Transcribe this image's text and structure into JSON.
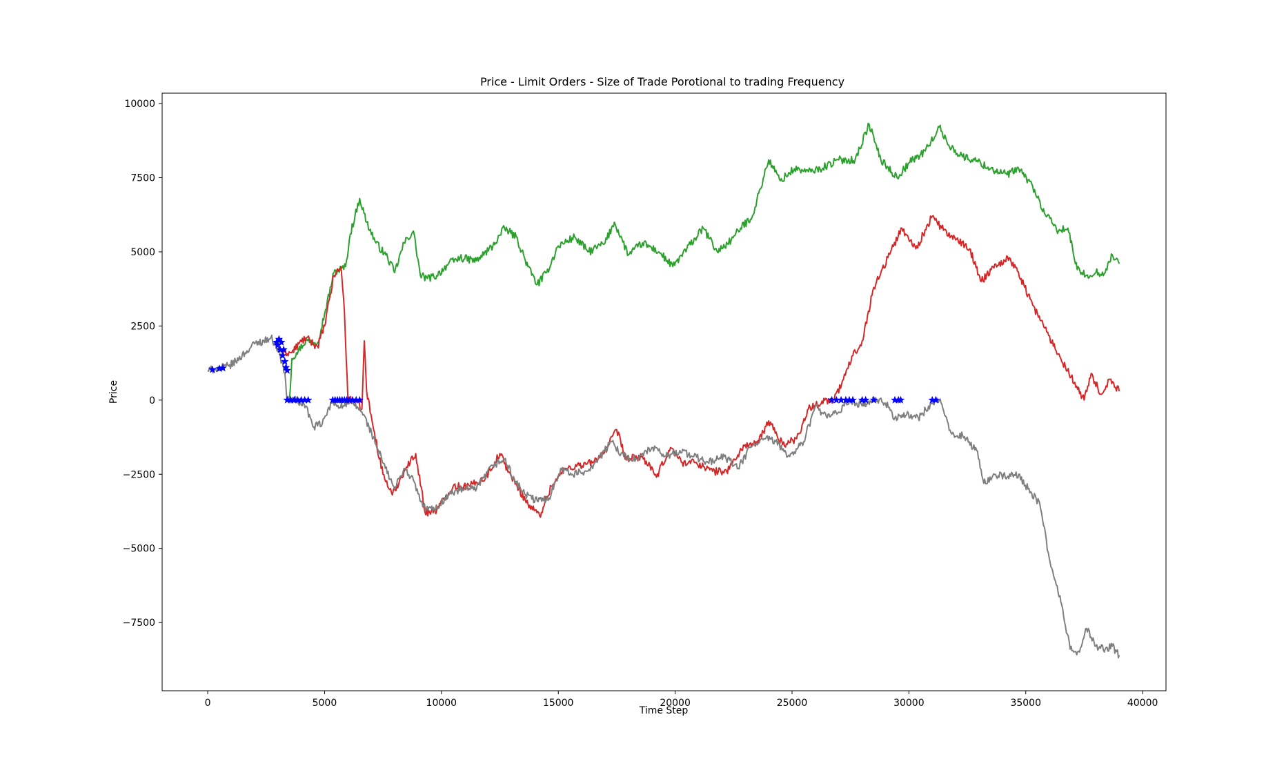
{
  "chart_data": {
    "type": "line",
    "title": "Price - Limit Orders - Size of Trade Porotional to trading Frequency",
    "xlabel": "Time Step",
    "ylabel": "Price",
    "xlim": [
      -1950,
      41000
    ],
    "ylim": [
      -9800,
      10350
    ],
    "x_ticks": [
      0,
      5000,
      10000,
      15000,
      20000,
      25000,
      30000,
      35000,
      40000
    ],
    "x_tick_labels": [
      "0",
      "5000",
      "10000",
      "15000",
      "20000",
      "25000",
      "30000",
      "35000",
      "40000"
    ],
    "y_ticks": [
      -7500,
      -5000,
      -2500,
      0,
      2500,
      5000,
      7500,
      10000
    ],
    "y_tick_labels": [
      "−7500",
      "−5000",
      "−2500",
      "0",
      "2500",
      "5000",
      "7500",
      "10000"
    ],
    "grid": false,
    "series": [
      {
        "color": "#2ca02c",
        "points": [
          [
            3500,
            0
          ],
          [
            3600,
            1400
          ],
          [
            3800,
            1600
          ],
          [
            4200,
            2000
          ],
          [
            4700,
            1950
          ],
          [
            5000,
            2900
          ],
          [
            5400,
            4300
          ],
          [
            5900,
            4500
          ],
          [
            6100,
            5600
          ],
          [
            6500,
            6800
          ],
          [
            6800,
            6000
          ],
          [
            7200,
            5300
          ],
          [
            7700,
            4800
          ],
          [
            8000,
            4300
          ],
          [
            8400,
            5300
          ],
          [
            8800,
            5700
          ],
          [
            9100,
            4200
          ],
          [
            9400,
            4100
          ],
          [
            9800,
            4200
          ],
          [
            10300,
            4600
          ],
          [
            10800,
            4800
          ],
          [
            11500,
            4700
          ],
          [
            12200,
            5200
          ],
          [
            12700,
            5800
          ],
          [
            13200,
            5500
          ],
          [
            13700,
            4500
          ],
          [
            14100,
            3900
          ],
          [
            14500,
            4300
          ],
          [
            15000,
            5200
          ],
          [
            15700,
            5500
          ],
          [
            16300,
            5000
          ],
          [
            17000,
            5300
          ],
          [
            17400,
            6000
          ],
          [
            18000,
            4900
          ],
          [
            18600,
            5300
          ],
          [
            19300,
            5000
          ],
          [
            19900,
            4500
          ],
          [
            20500,
            5100
          ],
          [
            21200,
            5800
          ],
          [
            21800,
            5000
          ],
          [
            22400,
            5400
          ],
          [
            22800,
            5800
          ],
          [
            23300,
            6200
          ],
          [
            24000,
            8100
          ],
          [
            24500,
            7400
          ],
          [
            25100,
            7800
          ],
          [
            25700,
            7700
          ],
          [
            26200,
            7800
          ],
          [
            27000,
            8100
          ],
          [
            27700,
            8100
          ],
          [
            28300,
            9300
          ],
          [
            28800,
            8100
          ],
          [
            29500,
            7500
          ],
          [
            30000,
            8000
          ],
          [
            30700,
            8400
          ],
          [
            31300,
            9200
          ],
          [
            31700,
            8600
          ],
          [
            32300,
            8200
          ],
          [
            32800,
            8100
          ],
          [
            33500,
            7800
          ],
          [
            34200,
            7600
          ],
          [
            34700,
            7800
          ],
          [
            35300,
            7200
          ],
          [
            35800,
            6300
          ],
          [
            36400,
            5700
          ],
          [
            36800,
            5800
          ],
          [
            37200,
            4400
          ],
          [
            37600,
            4200
          ],
          [
            38000,
            4300
          ],
          [
            38400,
            4300
          ],
          [
            38700,
            4900
          ],
          [
            39000,
            4600
          ]
        ]
      },
      {
        "color": "#d62728",
        "points": [
          [
            3200,
            1600
          ],
          [
            3600,
            1600
          ],
          [
            3900,
            1900
          ],
          [
            4200,
            2100
          ],
          [
            4700,
            1800
          ],
          [
            5000,
            2500
          ],
          [
            5400,
            4200
          ],
          [
            5700,
            4500
          ],
          [
            5850,
            3000
          ],
          [
            6000,
            0
          ],
          [
            6300,
            0
          ],
          [
            6600,
            -300
          ],
          [
            6700,
            2000
          ],
          [
            6800,
            300
          ],
          [
            7100,
            -1000
          ],
          [
            7500,
            -2500
          ],
          [
            7900,
            -3200
          ],
          [
            8400,
            -2400
          ],
          [
            8900,
            -1800
          ],
          [
            9300,
            -3800
          ],
          [
            9800,
            -3700
          ],
          [
            10500,
            -2900
          ],
          [
            11200,
            -2900
          ],
          [
            11900,
            -2600
          ],
          [
            12500,
            -1800
          ],
          [
            13000,
            -2600
          ],
          [
            13700,
            -3500
          ],
          [
            14200,
            -3900
          ],
          [
            14700,
            -2900
          ],
          [
            15300,
            -2300
          ],
          [
            15900,
            -2200
          ],
          [
            16500,
            -2100
          ],
          [
            17100,
            -1600
          ],
          [
            17500,
            -1000
          ],
          [
            17900,
            -2000
          ],
          [
            18600,
            -1900
          ],
          [
            19200,
            -2600
          ],
          [
            19800,
            -1600
          ],
          [
            20300,
            -2100
          ],
          [
            20900,
            -2100
          ],
          [
            21600,
            -2400
          ],
          [
            22200,
            -2400
          ],
          [
            23000,
            -1500
          ],
          [
            23500,
            -1500
          ],
          [
            24000,
            -700
          ],
          [
            24600,
            -1500
          ],
          [
            25200,
            -1300
          ],
          [
            25700,
            -300
          ],
          [
            26400,
            0
          ],
          [
            26800,
            0
          ],
          [
            27200,
            700
          ],
          [
            27600,
            1500
          ],
          [
            28000,
            2000
          ],
          [
            28500,
            3800
          ],
          [
            29100,
            4800
          ],
          [
            29700,
            5800
          ],
          [
            30300,
            5100
          ],
          [
            31000,
            6200
          ],
          [
            31400,
            5800
          ],
          [
            32000,
            5400
          ],
          [
            32600,
            5100
          ],
          [
            33100,
            4000
          ],
          [
            33600,
            4500
          ],
          [
            34300,
            4800
          ],
          [
            34800,
            4100
          ],
          [
            35300,
            3200
          ],
          [
            35900,
            2300
          ],
          [
            36500,
            1400
          ],
          [
            37100,
            600
          ],
          [
            37500,
            0
          ],
          [
            37800,
            900
          ],
          [
            38200,
            200
          ],
          [
            38600,
            700
          ],
          [
            39000,
            300
          ]
        ]
      },
      {
        "color": "#7f7f7f",
        "points": [
          [
            0,
            1000
          ],
          [
            300,
            1050
          ],
          [
            600,
            1100
          ],
          [
            900,
            1150
          ],
          [
            1200,
            1300
          ],
          [
            1600,
            1600
          ],
          [
            2000,
            1900
          ],
          [
            2400,
            2000
          ],
          [
            2700,
            2100
          ],
          [
            2900,
            1900
          ],
          [
            3100,
            1500
          ],
          [
            3300,
            900
          ],
          [
            3400,
            0
          ],
          [
            3800,
            0
          ],
          [
            4200,
            -200
          ],
          [
            4500,
            -900
          ],
          [
            4900,
            -800
          ],
          [
            5300,
            -100
          ],
          [
            5800,
            -200
          ],
          [
            6200,
            -100
          ],
          [
            6600,
            -400
          ],
          [
            6900,
            -900
          ],
          [
            7200,
            -1500
          ],
          [
            7600,
            -2300
          ],
          [
            8000,
            -3000
          ],
          [
            8400,
            -2300
          ],
          [
            8800,
            -2700
          ],
          [
            9200,
            -3600
          ],
          [
            9700,
            -3700
          ],
          [
            10300,
            -3200
          ],
          [
            10900,
            -3000
          ],
          [
            11500,
            -3000
          ],
          [
            12200,
            -2200
          ],
          [
            12700,
            -2000
          ],
          [
            13200,
            -2800
          ],
          [
            13600,
            -3200
          ],
          [
            14100,
            -3400
          ],
          [
            14600,
            -3300
          ],
          [
            15100,
            -2300
          ],
          [
            15600,
            -2500
          ],
          [
            16200,
            -2400
          ],
          [
            16700,
            -2000
          ],
          [
            17300,
            -1400
          ],
          [
            17800,
            -1900
          ],
          [
            18400,
            -2000
          ],
          [
            19000,
            -1600
          ],
          [
            19600,
            -1900
          ],
          [
            20200,
            -1700
          ],
          [
            20800,
            -1900
          ],
          [
            21400,
            -2100
          ],
          [
            22100,
            -1900
          ],
          [
            22700,
            -2300
          ],
          [
            23200,
            -1600
          ],
          [
            23800,
            -1300
          ],
          [
            24300,
            -1400
          ],
          [
            24900,
            -1900
          ],
          [
            25500,
            -1400
          ],
          [
            26000,
            -200
          ],
          [
            26500,
            -600
          ],
          [
            27000,
            -400
          ],
          [
            27500,
            0
          ],
          [
            28000,
            -200
          ],
          [
            28500,
            0
          ],
          [
            29000,
            -100
          ],
          [
            29400,
            -600
          ],
          [
            29900,
            -500
          ],
          [
            30400,
            -600
          ],
          [
            31000,
            -100
          ],
          [
            31300,
            0
          ],
          [
            31800,
            -1100
          ],
          [
            32300,
            -1200
          ],
          [
            32900,
            -1700
          ],
          [
            33200,
            -2800
          ],
          [
            33700,
            -2500
          ],
          [
            34200,
            -2600
          ],
          [
            34700,
            -2500
          ],
          [
            35100,
            -3000
          ],
          [
            35600,
            -3500
          ],
          [
            36000,
            -5300
          ],
          [
            36500,
            -6800
          ],
          [
            36900,
            -8400
          ],
          [
            37300,
            -8500
          ],
          [
            37600,
            -7700
          ],
          [
            38000,
            -8300
          ],
          [
            38400,
            -8400
          ],
          [
            38700,
            -8300
          ],
          [
            39000,
            -8600
          ]
        ]
      }
    ],
    "markers": {
      "color": "#0000ff",
      "shape": "star",
      "points": [
        [
          200,
          1030
        ],
        [
          500,
          1060
        ],
        [
          650,
          1080
        ],
        [
          2950,
          1950
        ],
        [
          3000,
          1850
        ],
        [
          3050,
          2050
        ],
        [
          3100,
          1700
        ],
        [
          3150,
          1950
        ],
        [
          3200,
          1500
        ],
        [
          3250,
          1700
        ],
        [
          3300,
          1300
        ],
        [
          3350,
          1100
        ],
        [
          3400,
          1000
        ],
        [
          3400,
          0
        ],
        [
          3550,
          0
        ],
        [
          3700,
          0
        ],
        [
          3850,
          0
        ],
        [
          4000,
          0
        ],
        [
          4150,
          0
        ],
        [
          4300,
          0
        ],
        [
          5350,
          0
        ],
        [
          5450,
          0
        ],
        [
          5550,
          0
        ],
        [
          5650,
          0
        ],
        [
          5750,
          0
        ],
        [
          5850,
          0
        ],
        [
          5950,
          0
        ],
        [
          6050,
          0
        ],
        [
          6200,
          0
        ],
        [
          6350,
          0
        ],
        [
          6500,
          0
        ],
        [
          26700,
          0
        ],
        [
          26900,
          0
        ],
        [
          27100,
          0
        ],
        [
          27300,
          0
        ],
        [
          27450,
          0
        ],
        [
          27600,
          0
        ],
        [
          28000,
          0
        ],
        [
          28150,
          0
        ],
        [
          28500,
          0
        ],
        [
          29400,
          0
        ],
        [
          29550,
          0
        ],
        [
          29650,
          0
        ],
        [
          31000,
          0
        ],
        [
          31150,
          0
        ]
      ]
    }
  }
}
